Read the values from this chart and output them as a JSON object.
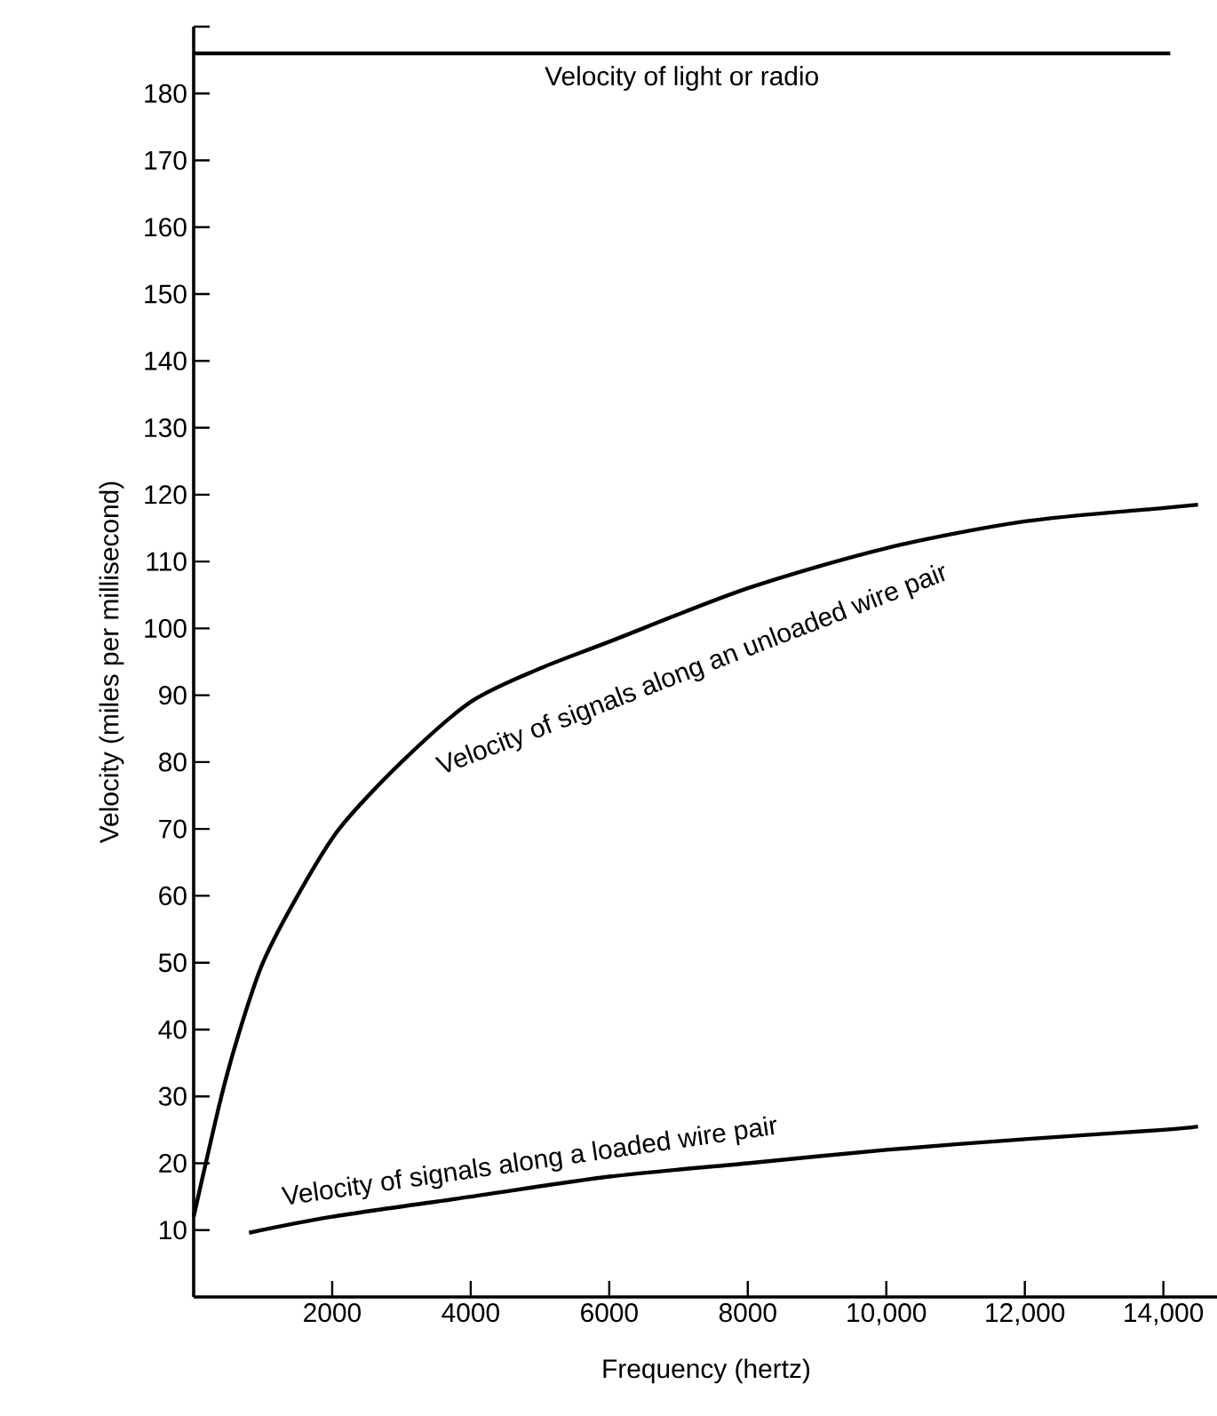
{
  "chart_data": {
    "type": "line",
    "xlabel": "Frequency (hertz)",
    "ylabel": "Velocity (miles per millisecond)",
    "xlim": [
      0,
      14800
    ],
    "ylim": [
      0,
      190
    ],
    "xticks": [
      2000,
      4000,
      6000,
      8000,
      {
        "value": 10000,
        "label": "10,000"
      },
      {
        "value": 12000,
        "label": "12,000"
      },
      {
        "value": 14000,
        "label": "14,000"
      }
    ],
    "yticks": [
      10,
      20,
      30,
      40,
      50,
      60,
      70,
      80,
      90,
      100,
      110,
      120,
      130,
      140,
      150,
      160,
      170,
      180,
      {
        "value": 190,
        "label": null
      }
    ],
    "grid": false,
    "marker": "none",
    "line_style": "solid",
    "series": [
      {
        "name": "Velocity of light or radio",
        "color": "#000000",
        "x": [
          0,
          14100
        ],
        "values": [
          186,
          186
        ]
      },
      {
        "name": "Velocity of signals along an unloaded wire pair",
        "color": "#000000",
        "x": [
          0,
          400,
          670,
          1000,
          1500,
          2100,
          3000,
          4000,
          5000,
          6000,
          8000,
          10000,
          12000,
          14000,
          14500
        ],
        "values": [
          12,
          30,
          40,
          50,
          60,
          70,
          80,
          89,
          94,
          98,
          106,
          112,
          116,
          118,
          118.5
        ]
      },
      {
        "name": "Velocity of signals along a loaded wire pair",
        "color": "#000000",
        "x": [
          800,
          2000,
          4000,
          6000,
          8000,
          10000,
          12000,
          14000,
          14500
        ],
        "values": [
          9.6,
          12,
          15,
          18,
          20,
          22,
          23.6,
          25,
          25.5
        ]
      }
    ]
  }
}
